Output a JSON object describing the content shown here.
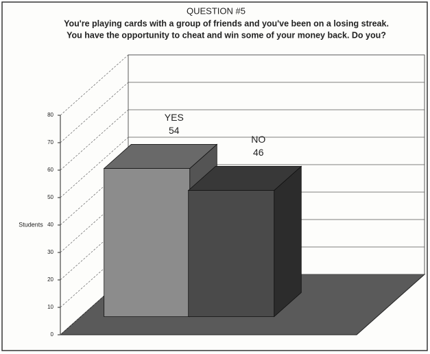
{
  "chart_data": {
    "type": "bar3d",
    "title": "QUESTION #5",
    "subtitle": [
      "You're playing cards with a group of friends and you've been on a losing streak.",
      "You have the opportunity to cheat and win some of your money back.  Do you?"
    ],
    "ylabel": "Students",
    "categories": [
      "YES",
      "NO"
    ],
    "values": [
      54,
      46
    ],
    "colors": [
      "#8c8c8c",
      "#4a4a4a"
    ],
    "ylim": [
      0,
      80
    ],
    "yticks": [
      0,
      10,
      20,
      30,
      40,
      50,
      60,
      70,
      80
    ],
    "grid": true
  }
}
